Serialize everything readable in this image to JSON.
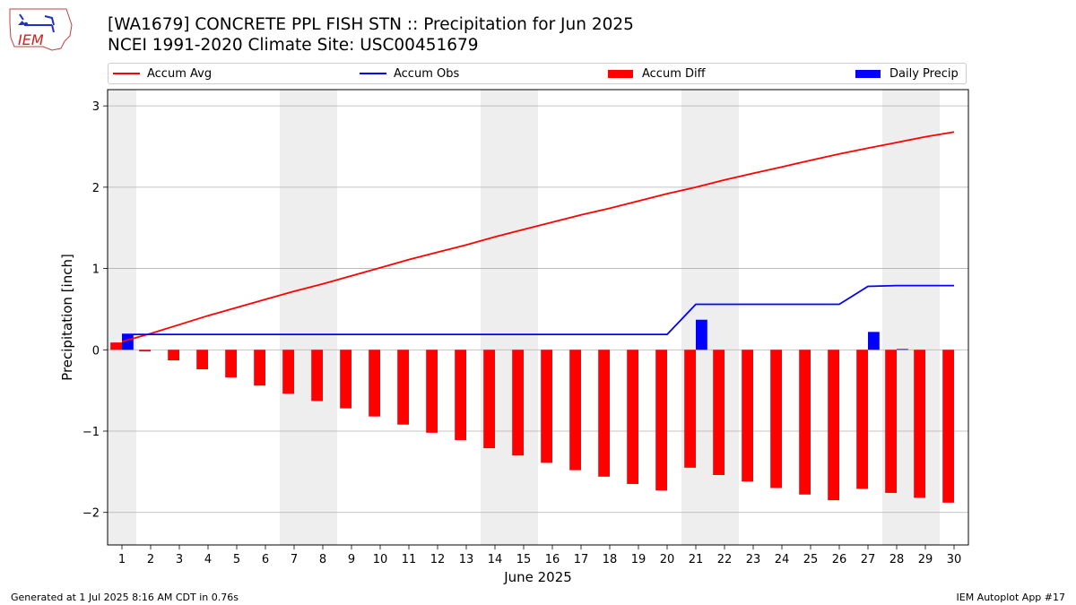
{
  "header": {
    "title_line1": "[WA1679] CONCRETE PPL FISH STN :: Precipitation for Jun 2025",
    "title_line2": "NCEI 1991-2020 Climate Site: USC00451679"
  },
  "logo": {
    "text": "IEM"
  },
  "footer": {
    "left": "Generated at 1 Jul 2025 8:16 AM CDT in 0.76s",
    "right": "IEM Autoplot App #17"
  },
  "chart_data": {
    "type": "bar",
    "xlabel": "June 2025",
    "ylabel": "Precipitation [inch]",
    "ylim": [
      -2.4,
      3.2
    ],
    "xlim": [
      0.5,
      30.5
    ],
    "yticks": [
      -2,
      -1,
      0,
      1,
      2,
      3
    ],
    "ytick_labels": [
      "−2",
      "−1",
      "0",
      "1",
      "2",
      "3"
    ],
    "grid": "horizontal",
    "legend_position": "top",
    "weekend_shading": [
      [
        0.5,
        1.5
      ],
      [
        6.5,
        8.5
      ],
      [
        13.5,
        15.5
      ],
      [
        20.5,
        22.5
      ],
      [
        27.5,
        29.5
      ]
    ],
    "categories": [
      "1",
      "2",
      "3",
      "4",
      "5",
      "6",
      "7",
      "8",
      "9",
      "10",
      "11",
      "12",
      "13",
      "14",
      "15",
      "16",
      "17",
      "18",
      "19",
      "20",
      "21",
      "22",
      "23",
      "24",
      "25",
      "26",
      "27",
      "28",
      "29",
      "30"
    ],
    "series": [
      {
        "name": "Accum Avg",
        "kind": "line",
        "color": "#ff0000",
        "values": [
          0.1,
          0.2,
          0.31,
          0.42,
          0.52,
          0.62,
          0.72,
          0.81,
          0.91,
          1.01,
          1.11,
          1.2,
          1.29,
          1.39,
          1.48,
          1.57,
          1.66,
          1.74,
          1.83,
          1.92,
          2.0,
          2.09,
          2.17,
          2.25,
          2.33,
          2.41,
          2.48,
          2.55,
          2.62,
          2.68
        ]
      },
      {
        "name": "Accum Obs",
        "kind": "line",
        "color": "#0000ff",
        "values": [
          0.19,
          0.19,
          0.19,
          0.19,
          0.19,
          0.19,
          0.19,
          0.19,
          0.19,
          0.19,
          0.19,
          0.19,
          0.19,
          0.19,
          0.19,
          0.19,
          0.19,
          0.19,
          0.19,
          0.19,
          0.56,
          0.56,
          0.56,
          0.56,
          0.56,
          0.56,
          0.78,
          0.79,
          0.79,
          0.79
        ]
      },
      {
        "name": "Accum Diff",
        "kind": "bar",
        "color": "#ff0000",
        "values": [
          0.09,
          -0.02,
          -0.13,
          -0.24,
          -0.34,
          -0.44,
          -0.54,
          -0.63,
          -0.72,
          -0.82,
          -0.92,
          -1.02,
          -1.11,
          -1.21,
          -1.3,
          -1.39,
          -1.48,
          -1.56,
          -1.65,
          -1.73,
          -1.45,
          -1.54,
          -1.62,
          -1.7,
          -1.78,
          -1.85,
          -1.71,
          -1.76,
          -1.82,
          -1.88
        ]
      },
      {
        "name": "Daily Precip",
        "kind": "bar",
        "color": "#0000ff",
        "values": [
          0.19,
          0,
          0,
          0,
          0,
          0,
          0,
          0,
          0,
          0,
          0,
          0,
          0,
          0,
          0,
          0,
          0,
          0,
          0,
          0,
          0.37,
          0,
          0,
          0,
          0,
          0,
          0.22,
          0.01,
          0,
          0
        ]
      }
    ]
  }
}
